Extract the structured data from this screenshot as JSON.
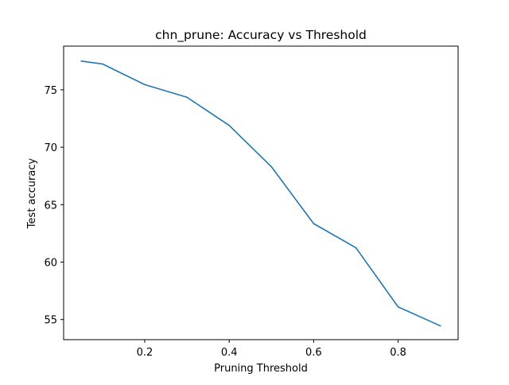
{
  "chart_data": {
    "type": "line",
    "title": "chn_prune: Accuracy vs Threshold",
    "xlabel": "Pruning Threshold",
    "ylabel": "Test accuracy",
    "xlim": [
      0.008,
      0.942
    ],
    "ylim": [
      53.25,
      78.8
    ],
    "xticks": [
      0.2,
      0.4,
      0.6,
      0.8
    ],
    "xtick_labels": [
      "0.2",
      "0.4",
      "0.6",
      "0.8"
    ],
    "yticks": [
      55,
      60,
      65,
      70,
      75
    ],
    "ytick_labels": [
      "55",
      "60",
      "65",
      "70",
      "75"
    ],
    "grid": false,
    "series": [
      {
        "color": "#1f77b4",
        "x": [
          0.05,
          0.1,
          0.2,
          0.3,
          0.4,
          0.5,
          0.6,
          0.7,
          0.8,
          0.9
        ],
        "y": [
          77.5,
          77.25,
          75.45,
          74.35,
          71.9,
          68.3,
          63.35,
          61.25,
          56.1,
          54.45
        ]
      }
    ]
  }
}
